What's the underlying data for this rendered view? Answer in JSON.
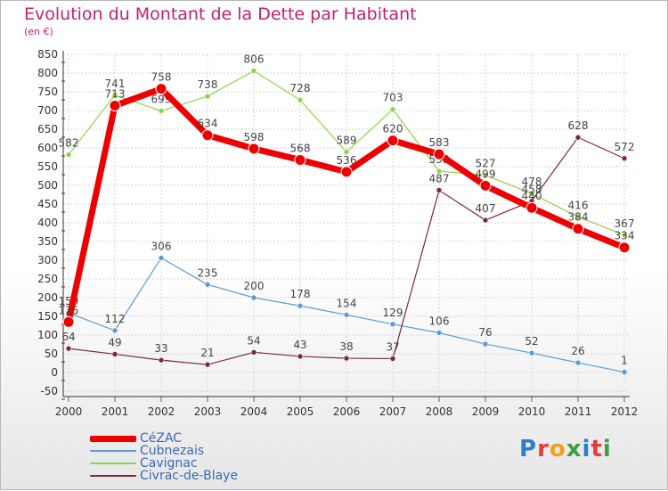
{
  "title": "Evolution du Montant de la Dette par Habitant",
  "subtitle": "(en €)",
  "logo": {
    "text": "Proxiti",
    "colors": [
      "#2a7fd0",
      "#e03c3c",
      "#f0a020",
      "#3aa040",
      "#2a7fd0",
      "#e03c3c",
      "#3aa040"
    ]
  },
  "chart_data": {
    "type": "line",
    "x": [
      "2000",
      "2001",
      "2002",
      "2003",
      "2004",
      "2005",
      "2006",
      "2007",
      "2008",
      "2009",
      "2010",
      "2011",
      "2012"
    ],
    "ylim": [
      -50,
      850
    ],
    "ytick_step": 50,
    "grid": true,
    "legend_position": "bottom-left",
    "series": [
      {
        "name": "Cavignac",
        "color": "#8fd24a",
        "width": 1.2,
        "marker": 3,
        "values": [
          582,
          741,
          699,
          738,
          806,
          728,
          589,
          703,
          538,
          527,
          478,
          416,
          367
        ],
        "labels": [
          "582",
          "741",
          "699",
          "738",
          "806",
          "728",
          "589",
          "703",
          "538",
          "527",
          "478",
          "416",
          "367"
        ]
      },
      {
        "name": "Cubnezais",
        "color": "#5b9bd5",
        "width": 1.2,
        "marker": 3,
        "values": [
          159,
          112,
          306,
          235,
          200,
          178,
          154,
          129,
          106,
          76,
          52,
          26,
          1
        ],
        "labels": [
          "159",
          "112",
          "306",
          "235",
          "200",
          "178",
          "154",
          "129",
          "106",
          "76",
          "52",
          "26",
          "1"
        ]
      },
      {
        "name": "Civrac-de-Blaye",
        "color": "#7a2a32",
        "width": 1.2,
        "marker": 3,
        "values": [
          64,
          49,
          33,
          21,
          54,
          43,
          38,
          37,
          487,
          407,
          458,
          628,
          572
        ],
        "labels": [
          "64",
          "49",
          "33",
          "21",
          "54",
          "43",
          "38",
          "37",
          "487",
          "407",
          "458",
          "628",
          "572"
        ]
      },
      {
        "name": "CéZAC",
        "color": "#ee0000",
        "width": 7,
        "marker": 6,
        "values": [
          135,
          713,
          758,
          634,
          598,
          568,
          536,
          620,
          583,
          499,
          440,
          384,
          334
        ],
        "labels": [
          "135",
          "713",
          "758",
          "634",
          "598",
          "568",
          "536",
          "620",
          "583",
          "499",
          "440",
          "384",
          "334"
        ]
      }
    ]
  },
  "legend": [
    {
      "label": "CéZAC",
      "color": "#ee0000",
      "thick": true
    },
    {
      "label": "Cubnezais",
      "color": "#5b9bd5",
      "thick": false
    },
    {
      "label": "Cavignac",
      "color": "#8fd24a",
      "thick": false
    },
    {
      "label": "Civrac-de-Blaye",
      "color": "#7a2a32",
      "thick": false
    }
  ]
}
